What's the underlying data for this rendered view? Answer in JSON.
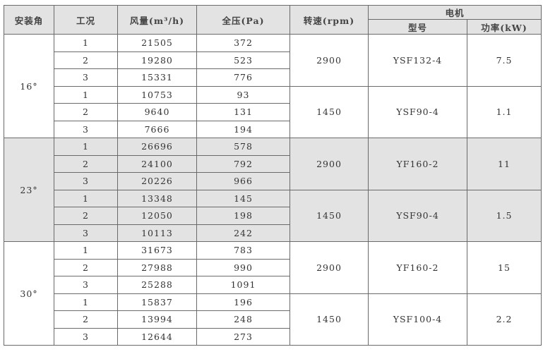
{
  "headers": {
    "angle": "安装角",
    "condition": "工况",
    "airflow": "风量(m³/h)",
    "pressure": "全压(Pa)",
    "speed": "转速(rpm)",
    "motor": "电机",
    "model": "型号",
    "power": "功率(kW)"
  },
  "groups": [
    {
      "angle": "16°",
      "subgroups": [
        {
          "speed": "2900",
          "model": "YSF132-4",
          "power": "7.5",
          "rows": [
            [
              "1",
              "21505",
              "372"
            ],
            [
              "2",
              "19280",
              "523"
            ],
            [
              "3",
              "15331",
              "776"
            ]
          ]
        },
        {
          "speed": "1450",
          "model": "YSF90-4",
          "power": "1.1",
          "rows": [
            [
              "1",
              "10753",
              "93"
            ],
            [
              "2",
              "9640",
              "131"
            ],
            [
              "3",
              "7666",
              "194"
            ]
          ]
        }
      ]
    },
    {
      "angle": "23°",
      "subgroups": [
        {
          "speed": "2900",
          "model": "YF160-2",
          "power": "11",
          "rows": [
            [
              "1",
              "26696",
              "578"
            ],
            [
              "2",
              "24100",
              "792"
            ],
            [
              "3",
              "20226",
              "966"
            ]
          ]
        },
        {
          "speed": "1450",
          "model": "YSF90-4",
          "power": "1.5",
          "rows": [
            [
              "1",
              "13348",
              "145"
            ],
            [
              "2",
              "12050",
              "198"
            ],
            [
              "3",
              "10113",
              "242"
            ]
          ]
        }
      ]
    },
    {
      "angle": "30°",
      "subgroups": [
        {
          "speed": "2900",
          "model": "YF160-2",
          "power": "15",
          "rows": [
            [
              "1",
              "31673",
              "783"
            ],
            [
              "2",
              "27988",
              "990"
            ],
            [
              "3",
              "25288",
              "1091"
            ]
          ]
        },
        {
          "speed": "1450",
          "model": "YSF100-4",
          "power": "2.2",
          "rows": [
            [
              "1",
              "15837",
              "196"
            ],
            [
              "2",
              "13994",
              "248"
            ],
            [
              "3",
              "12644",
              "273"
            ]
          ]
        }
      ]
    }
  ]
}
